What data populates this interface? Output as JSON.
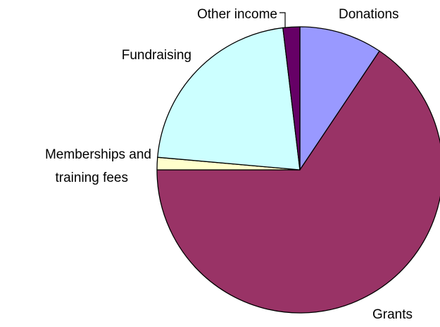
{
  "chart_data": {
    "type": "pie",
    "start_angle_deg": 0,
    "direction": "clockwise",
    "slices": [
      {
        "label": "Donations",
        "value": 9.4,
        "color": "#9999ff"
      },
      {
        "label": "Grants",
        "value": 65.6,
        "color": "#993366"
      },
      {
        "label": "Memberships and training fees",
        "value": 1.4,
        "color": "#ffffcc"
      },
      {
        "label": "Fundraising",
        "value": 21.7,
        "color": "#ccffff"
      },
      {
        "label": "Other income",
        "value": 1.9,
        "color": "#660066"
      }
    ],
    "labels": {
      "donations": "Donations",
      "grants": "Grants",
      "memberships_line1": "Memberships and",
      "memberships_line2": "training fees",
      "fundraising": "Fundraising",
      "other_income": "Other income"
    }
  }
}
